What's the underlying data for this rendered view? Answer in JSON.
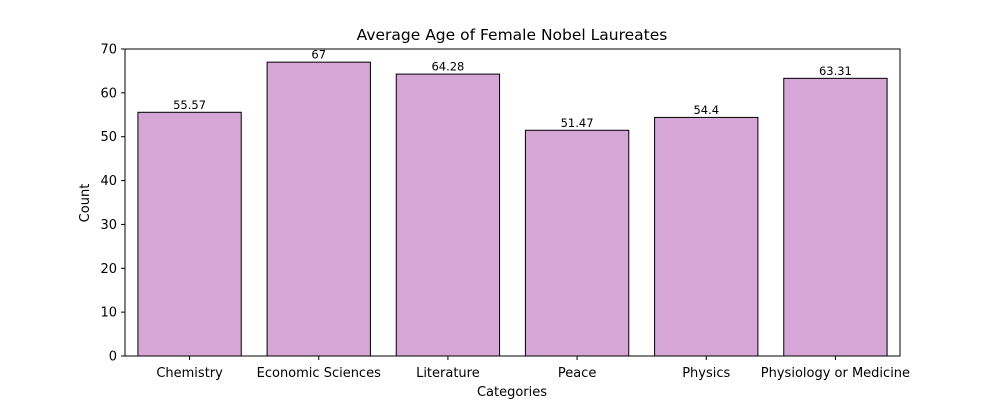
{
  "chart_data": {
    "type": "bar",
    "title": "Average Age of Female Nobel Laureates",
    "xlabel": "Categories",
    "ylabel": "Count",
    "categories": [
      "Chemistry",
      "Economic Sciences",
      "Literature",
      "Peace",
      "Physics",
      "Physiology or Medicine"
    ],
    "values": [
      55.57,
      67,
      64.28,
      51.47,
      54.4,
      63.31
    ],
    "data_labels": [
      "55.57",
      "67",
      "64.28",
      "51.47",
      "54.4",
      "63.31"
    ],
    "ylim": [
      0,
      70
    ],
    "yticks": [
      0,
      10,
      20,
      30,
      40,
      50,
      60,
      70
    ],
    "grid": false,
    "legend": "none",
    "colors": {
      "bar_fill": "#d5a6d6",
      "bar_edge": "#000000",
      "axis": "#000000",
      "background": "#ffffff"
    }
  }
}
